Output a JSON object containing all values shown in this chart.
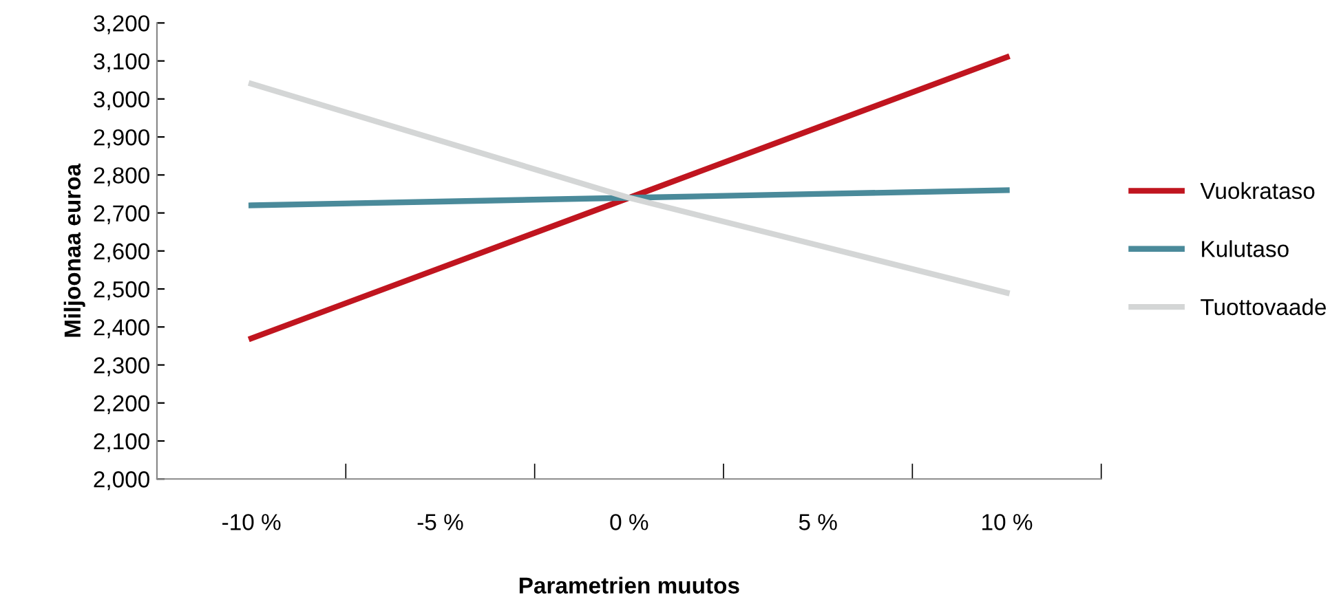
{
  "chart_data": {
    "type": "line",
    "xlabel": "Parametrien muutos",
    "ylabel": "Miljoonaa euroa",
    "categories": [
      "-10 %",
      "-5 %",
      "0 %",
      "5 %",
      "10 %"
    ],
    "series": [
      {
        "name": "Vuokrataso",
        "color": "#c0151f",
        "values": [
          2370,
          2555,
          2740,
          2925,
          3110
        ]
      },
      {
        "name": "Kulutaso",
        "color": "#4a8a9a",
        "values": [
          2720,
          2730,
          2740,
          2750,
          2760
        ]
      },
      {
        "name": "Tuottovaade",
        "color": "#d4d6d6",
        "values": [
          3040,
          2890,
          2740,
          2615,
          2490
        ]
      }
    ],
    "ylim": [
      2000,
      3200
    ],
    "yticks": [
      {
        "value": 2000,
        "label": "2,000"
      },
      {
        "value": 2100,
        "label": "2,100"
      },
      {
        "value": 2200,
        "label": "2,200"
      },
      {
        "value": 2300,
        "label": "2,300"
      },
      {
        "value": 2400,
        "label": "2,400"
      },
      {
        "value": 2500,
        "label": "2,500"
      },
      {
        "value": 2600,
        "label": "2,600"
      },
      {
        "value": 2700,
        "label": "2,700"
      },
      {
        "value": 2800,
        "label": "2,800"
      },
      {
        "value": 2900,
        "label": "2,900"
      },
      {
        "value": 3000,
        "label": "3,000"
      },
      {
        "value": 3100,
        "label": "3,100"
      },
      {
        "value": 3200,
        "label": "3,200"
      }
    ],
    "legend": "right",
    "marker": "none",
    "line_style": "solid"
  }
}
